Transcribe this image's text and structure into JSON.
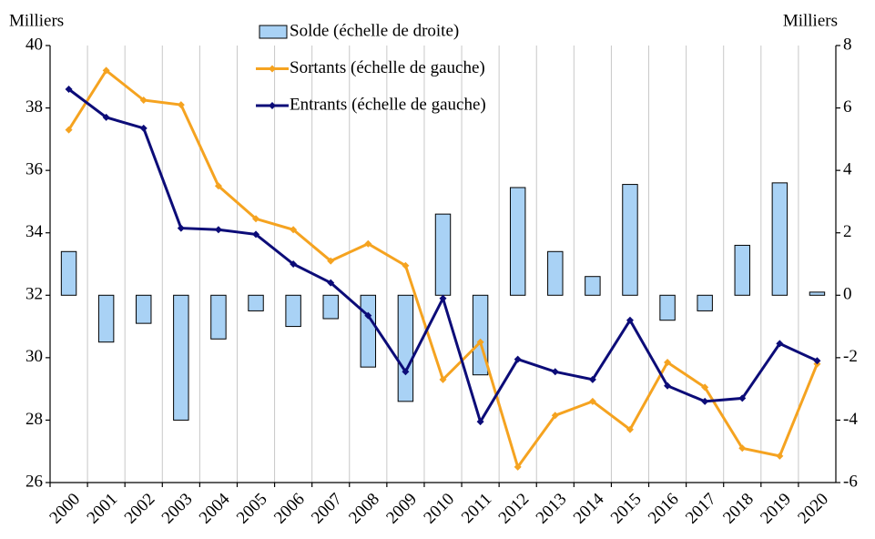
{
  "chart_data": {
    "type": "combo",
    "y_label": "Milliers",
    "y2_label": "Milliers",
    "categories": [
      "2000",
      "2001",
      "2002",
      "2003",
      "2004",
      "2005",
      "2006",
      "2007",
      "2008",
      "2009",
      "2010",
      "2011",
      "2012",
      "2013",
      "2014",
      "2015",
      "2016",
      "2017",
      "2018",
      "2019",
      "2020"
    ],
    "ylim": [
      26,
      40
    ],
    "yticks": [
      26,
      28,
      30,
      32,
      34,
      36,
      38,
      40
    ],
    "y2lim": [
      -6,
      8
    ],
    "y2ticks": [
      -6,
      -4,
      -2,
      0,
      2,
      4,
      6,
      8
    ],
    "series": [
      {
        "name": "Solde (échelle de droite)",
        "type": "bar",
        "axis": "y2",
        "color": "#a9d2f5",
        "values": [
          1.4,
          -1.5,
          -0.9,
          -4.0,
          -1.4,
          -0.5,
          -1.0,
          -0.75,
          -2.3,
          -3.4,
          2.6,
          -2.55,
          3.45,
          1.4,
          0.6,
          3.55,
          -0.8,
          -0.5,
          1.6,
          3.6,
          0.1
        ]
      },
      {
        "name": "Sortants (échelle de gauche)",
        "type": "line",
        "color": "#f5a320",
        "values": [
          37.3,
          39.2,
          38.25,
          38.1,
          35.5,
          34.45,
          34.1,
          33.1,
          33.65,
          32.95,
          29.3,
          30.5,
          26.5,
          28.15,
          28.6,
          27.7,
          29.85,
          29.05,
          27.1,
          26.85,
          29.8
        ]
      },
      {
        "name": "Entrants (échelle de gauche)",
        "type": "line",
        "color": "#0c0c78",
        "values": [
          38.6,
          37.7,
          37.35,
          34.15,
          34.1,
          33.95,
          33.0,
          32.4,
          31.35,
          29.55,
          31.9,
          27.95,
          29.95,
          29.55,
          29.3,
          31.2,
          29.1,
          28.6,
          28.7,
          30.45,
          29.9
        ]
      }
    ]
  }
}
